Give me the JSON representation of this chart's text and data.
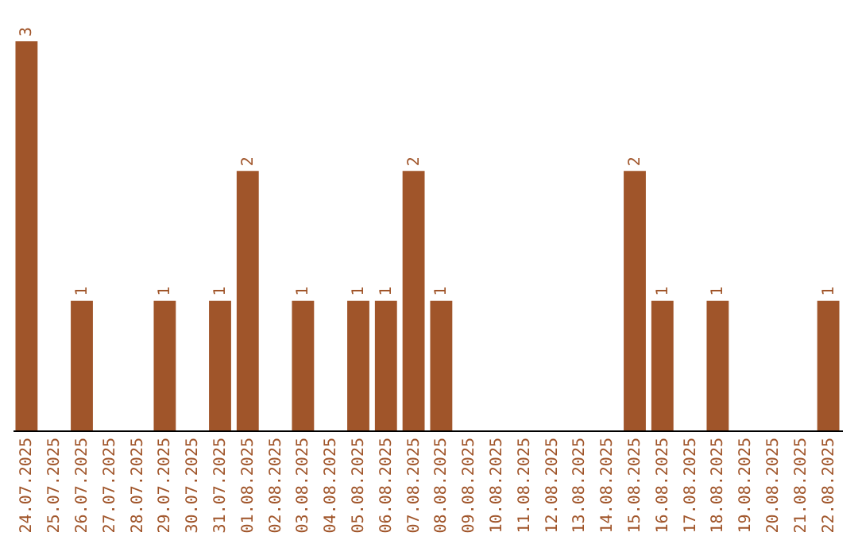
{
  "chart_data": {
    "type": "bar",
    "categories": [
      "24.07.2025",
      "25.07.2025",
      "26.07.2025",
      "27.07.2025",
      "28.07.2025",
      "29.07.2025",
      "30.07.2025",
      "31.07.2025",
      "01.08.2025",
      "02.08.2025",
      "03.08.2025",
      "04.08.2025",
      "05.08.2025",
      "06.08.2025",
      "07.08.2025",
      "08.08.2025",
      "09.08.2025",
      "10.08.2025",
      "11.08.2025",
      "12.08.2025",
      "13.08.2025",
      "14.08.2025",
      "15.08.2025",
      "16.08.2025",
      "17.08.2025",
      "18.08.2025",
      "19.08.2025",
      "20.08.2025",
      "21.08.2025",
      "22.08.2025"
    ],
    "values": [
      3,
      0,
      1,
      0,
      0,
      1,
      0,
      1,
      2,
      0,
      1,
      0,
      1,
      1,
      2,
      1,
      0,
      0,
      0,
      0,
      0,
      0,
      2,
      1,
      0,
      1,
      0,
      0,
      0,
      1
    ],
    "value_labels": [
      "3",
      null,
      "1",
      null,
      null,
      "1",
      null,
      "1",
      "2",
      null,
      "1",
      null,
      "1",
      "1",
      "2",
      "1",
      null,
      null,
      null,
      null,
      null,
      null,
      "2",
      "1",
      null,
      "1",
      null,
      null,
      null,
      "1"
    ],
    "color": "#a0552a",
    "tick_labels": "x"
  }
}
